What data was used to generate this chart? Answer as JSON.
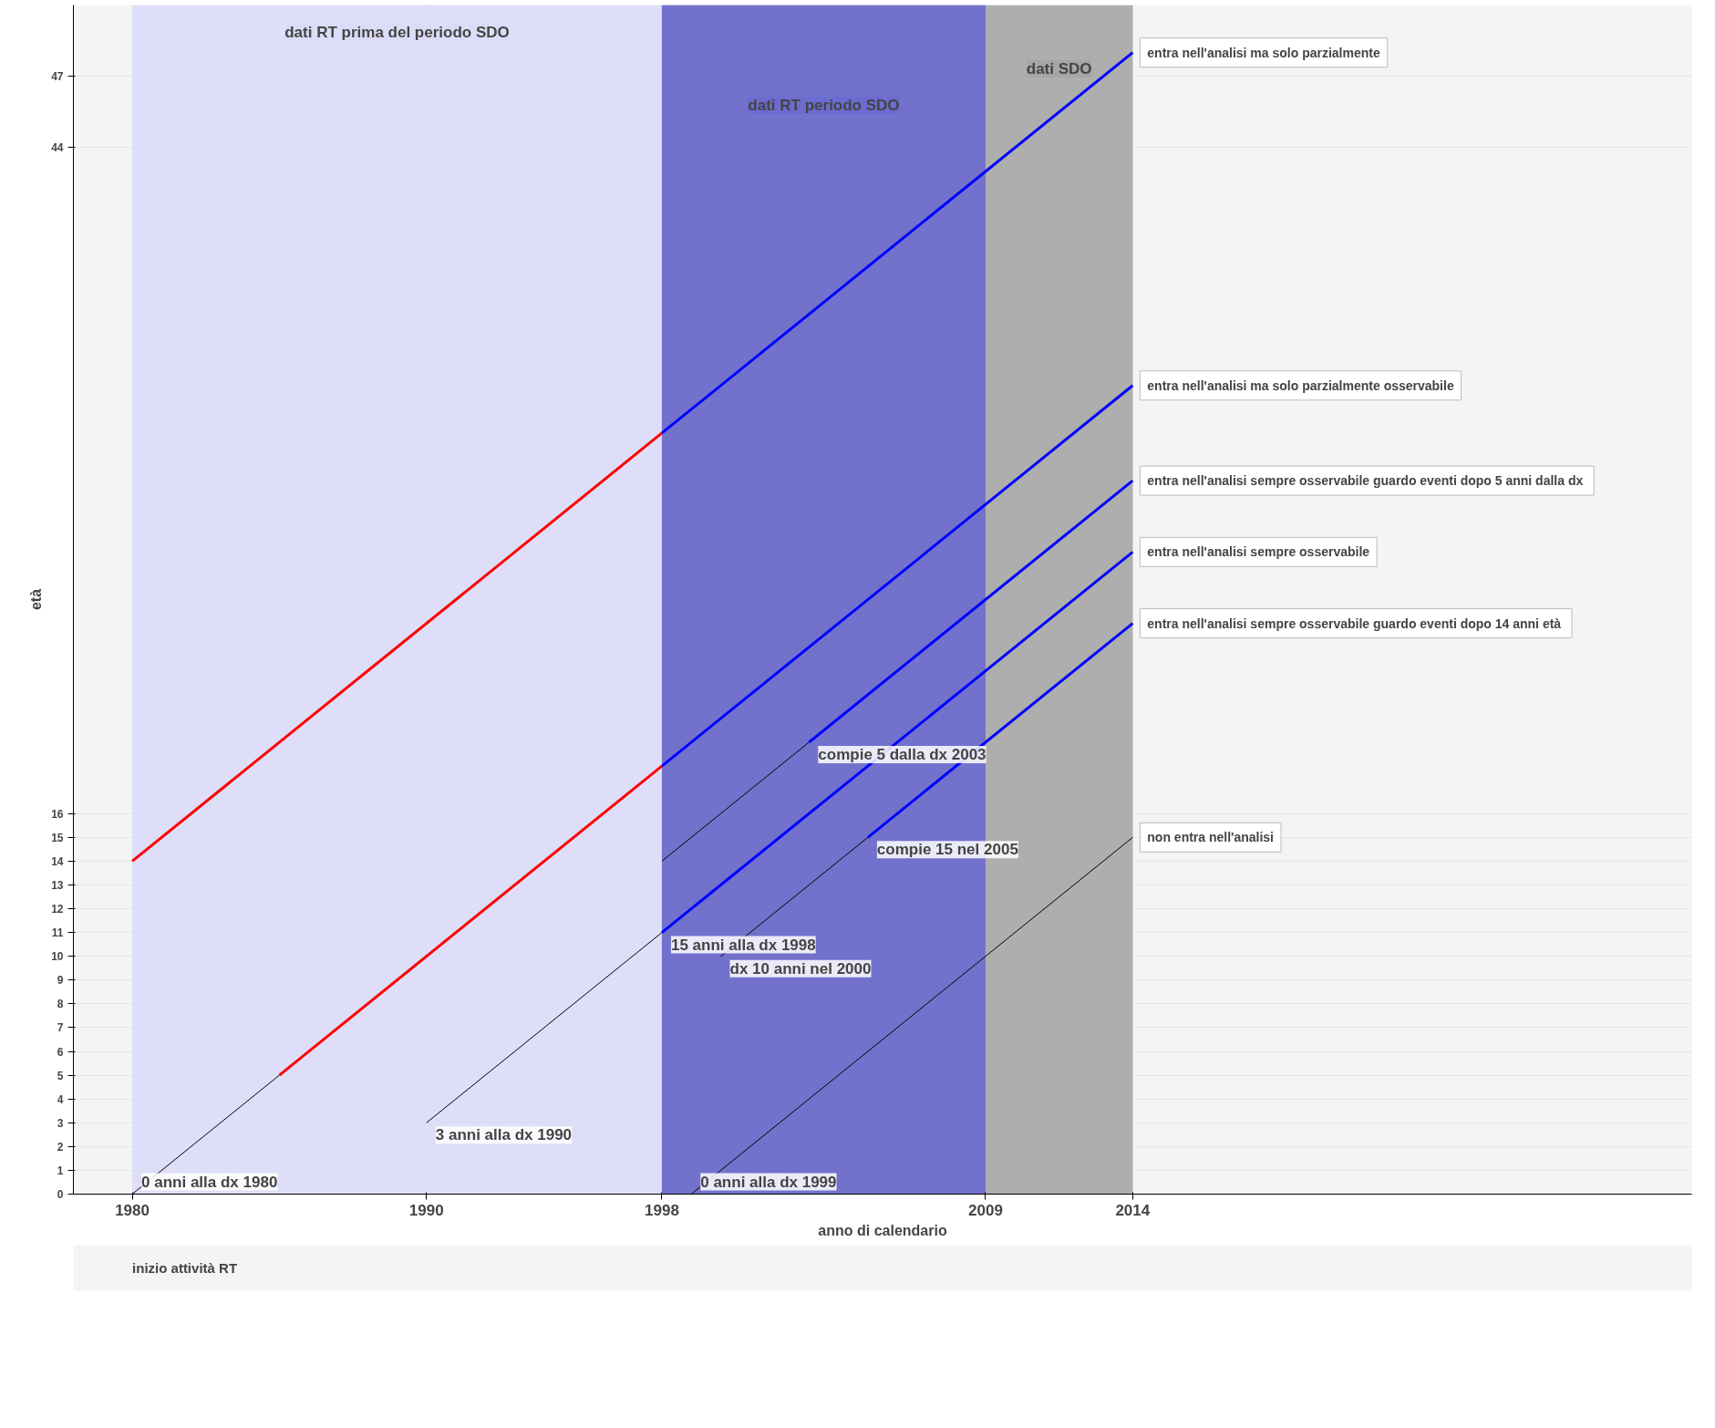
{
  "chart_data": {
    "type": "line",
    "xlabel": "anno di calendario",
    "ylabel": "età",
    "xlim": [
      1978,
      2033
    ],
    "ylim": [
      0,
      50
    ],
    "xticks": [
      1980,
      1990,
      1998,
      2009,
      2014
    ],
    "yticks": [
      0,
      1,
      2,
      3,
      4,
      5,
      6,
      7,
      8,
      9,
      10,
      11,
      12,
      13,
      14,
      15,
      16,
      44,
      47
    ],
    "grid": true,
    "series": [
      {
        "color": "#ff0000",
        "x": [
          1980,
          1998
        ],
        "values": [
          14,
          32
        ]
      },
      {
        "color": "#0000ff",
        "x": [
          1998,
          2014
        ],
        "values": [
          32,
          48
        ]
      },
      {
        "color": "#000000",
        "x": [
          1980,
          1985
        ],
        "values": [
          0,
          5
        ]
      },
      {
        "color": "#ff0000",
        "x": [
          1985,
          1998
        ],
        "values": [
          5,
          18
        ]
      },
      {
        "color": "#0000ff",
        "x": [
          1998,
          2014
        ],
        "values": [
          18,
          34
        ]
      },
      {
        "color": "#000000",
        "x": [
          1998,
          2003
        ],
        "values": [
          14,
          19
        ]
      },
      {
        "color": "#0000ff",
        "x": [
          2003,
          2014
        ],
        "values": [
          19,
          30
        ]
      },
      {
        "color": "#000000",
        "x": [
          1990,
          1998
        ],
        "values": [
          3,
          11
        ]
      },
      {
        "color": "#0000ff",
        "x": [
          1998,
          2014
        ],
        "values": [
          11,
          27
        ]
      },
      {
        "color": "#000000",
        "x": [
          2000,
          2005
        ],
        "values": [
          10,
          15
        ]
      },
      {
        "color": "#0000ff",
        "x": [
          2005,
          2014
        ],
        "values": [
          15,
          24
        ]
      },
      {
        "color": "#000000",
        "x": [
          1999,
          2014
        ],
        "values": [
          0,
          15
        ]
      }
    ],
    "bands": [
      {
        "axis": "x",
        "from": 1980,
        "to": 1998,
        "label": "dati RT prima del periodo SDO",
        "color": "#dcdcf8"
      },
      {
        "axis": "x",
        "from": 1998,
        "to": 2014,
        "label": "dati SDO",
        "color": "#a6a6a6"
      },
      {
        "axis": "x",
        "from": 1998,
        "to": 2009,
        "label": "dati RT periodo SDO",
        "color": "#6b6bd0"
      }
    ],
    "annotations": [
      {
        "text": "entra nell'analisi ma solo parzialmente",
        "x": 2014,
        "y": 48
      },
      {
        "text": "entra nell'analisi ma solo parzialmente osservabile",
        "x": 2014,
        "y": 34
      },
      {
        "text": "entra nell'analisi  sempre osservabile guardo eventi dopo 5 anni dalla dx",
        "x": 2014,
        "y": 30
      },
      {
        "text": "entra nell'analisi sempre osservabile",
        "x": 2014,
        "y": 27
      },
      {
        "text": "entra nell'analisi  sempre osservabile guardo eventi dopo 14 anni età",
        "x": 2014,
        "y": 24
      },
      {
        "text": "non entra nell'analisi",
        "x": 2014,
        "y": 15
      },
      {
        "text": "0 anni alla dx 1980",
        "x": 1980,
        "y": 0
      },
      {
        "text": "3 anni alla dx 1990",
        "x": 1990,
        "y": 3
      },
      {
        "text": "15 anni alla dx 1998",
        "x": 1998,
        "y": 11
      },
      {
        "text": "compie 5 dalla dx 2003",
        "x": 2003,
        "y": 19
      },
      {
        "text": "dx 10 anni nel 2000",
        "x": 2000,
        "y": 10
      },
      {
        "text": "compie 15 nel 2005",
        "x": 2005,
        "y": 15
      },
      {
        "text": "0 anni alla dx 1999",
        "x": 1999,
        "y": 0
      },
      "inizio attività RT"
    ]
  }
}
